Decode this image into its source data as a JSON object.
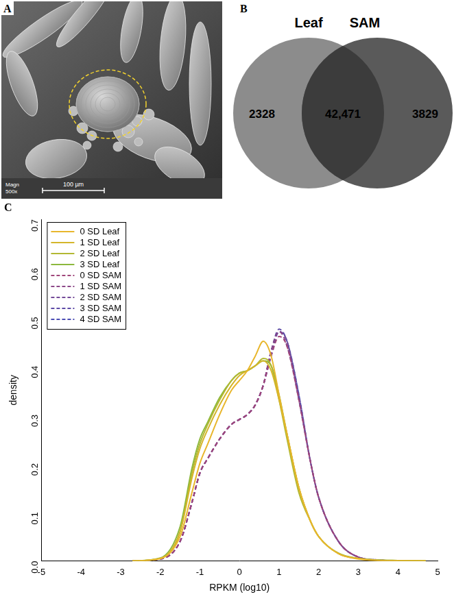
{
  "panels": {
    "A": {
      "label": "A",
      "scale_bar": "100 µm",
      "magnification": [
        "Magn",
        "500x"
      ]
    },
    "B": {
      "label": "B",
      "sets": [
        "Leaf",
        "SAM"
      ],
      "counts": {
        "Leaf only": "2328",
        "both": "42,471",
        "SAM only": "3829"
      }
    }
  },
  "chart_data": {
    "type": "line",
    "title": "C",
    "x_label": "RPKM (log10)",
    "y_label": "density",
    "x": [
      -2.7,
      -2,
      -1.5,
      -1.2,
      -1,
      -0.8,
      -0.5,
      -0.2,
      0,
      0.2,
      0.4,
      0.6,
      0.8,
      1,
      1.2,
      1.5,
      1.8,
      2,
      2.5,
      3,
      3.5,
      4,
      4.7
    ],
    "series": [
      {
        "name": "0 SD Leaf",
        "color": "#e8b62c",
        "line_style": "solid",
        "values": [
          0,
          0.005,
          0.05,
          0.14,
          0.2,
          0.24,
          0.3,
          0.35,
          0.37,
          0.39,
          0.42,
          0.45,
          0.42,
          0.34,
          0.26,
          0.15,
          0.08,
          0.05,
          0.015,
          0.004,
          0.001,
          0,
          0
        ]
      },
      {
        "name": "1 SD Leaf",
        "color": "#d4b52a",
        "line_style": "solid",
        "values": [
          0,
          0.005,
          0.06,
          0.17,
          0.23,
          0.27,
          0.32,
          0.36,
          0.38,
          0.39,
          0.4,
          0.41,
          0.39,
          0.33,
          0.26,
          0.15,
          0.08,
          0.05,
          0.015,
          0.005,
          0.001,
          0.001,
          0
        ]
      },
      {
        "name": "2 SD Leaf",
        "color": "#b2b832",
        "line_style": "solid",
        "values": [
          0,
          0.005,
          0.06,
          0.18,
          0.24,
          0.28,
          0.33,
          0.37,
          0.385,
          0.39,
          0.4,
          0.415,
          0.4,
          0.33,
          0.25,
          0.14,
          0.08,
          0.05,
          0.015,
          0.005,
          0.002,
          0.001,
          0
        ]
      },
      {
        "name": "3 SD Leaf",
        "color": "#8cb83c",
        "line_style": "solid",
        "values": [
          0,
          0.006,
          0.07,
          0.19,
          0.25,
          0.285,
          0.335,
          0.37,
          0.385,
          0.39,
          0.4,
          0.41,
          0.4,
          0.34,
          0.26,
          0.15,
          0.08,
          0.05,
          0.016,
          0.005,
          0.002,
          0.001,
          0
        ]
      },
      {
        "name": "0 SD SAM",
        "color": "#a0467a",
        "line_style": "dashed",
        "values": [
          0,
          0.004,
          0.04,
          0.12,
          0.18,
          0.21,
          0.25,
          0.28,
          0.29,
          0.3,
          0.32,
          0.36,
          0.42,
          0.46,
          0.44,
          0.33,
          0.2,
          0.13,
          0.04,
          0.008,
          0.002,
          0,
          null
        ]
      },
      {
        "name": "1 SD SAM",
        "color": "#8c4888",
        "line_style": "dashed",
        "values": [
          0,
          0.004,
          0.04,
          0.12,
          0.18,
          0.21,
          0.25,
          0.28,
          0.29,
          0.3,
          0.32,
          0.36,
          0.43,
          0.47,
          0.44,
          0.33,
          0.2,
          0.13,
          0.04,
          0.008,
          0.002,
          0,
          null
        ]
      },
      {
        "name": "2 SD SAM",
        "color": "#744a98",
        "line_style": "dashed",
        "values": [
          0,
          0.004,
          0.04,
          0.12,
          0.18,
          0.21,
          0.25,
          0.28,
          0.29,
          0.3,
          0.32,
          0.36,
          0.43,
          0.47,
          0.45,
          0.33,
          0.2,
          0.13,
          0.04,
          0.008,
          0.002,
          0,
          null
        ]
      },
      {
        "name": "3 SD SAM",
        "color": "#5c4aa6",
        "line_style": "dashed",
        "values": [
          0,
          0.004,
          0.04,
          0.12,
          0.18,
          0.21,
          0.25,
          0.28,
          0.29,
          0.3,
          0.32,
          0.36,
          0.43,
          0.475,
          0.45,
          0.34,
          0.2,
          0.13,
          0.04,
          0.008,
          0.002,
          0,
          null
        ]
      },
      {
        "name": "4 SD SAM",
        "color": "#4a4cb4",
        "line_style": "dashed",
        "values": [
          0,
          0.004,
          0.04,
          0.12,
          0.18,
          0.21,
          0.25,
          0.28,
          0.29,
          0.3,
          0.32,
          0.36,
          0.42,
          0.47,
          0.45,
          0.34,
          0.2,
          0.13,
          0.04,
          0.008,
          0.002,
          0,
          null
        ]
      }
    ],
    "xlim": [
      -5,
      5
    ],
    "xticks": [
      -5,
      -4,
      -3,
      -2,
      -1,
      0,
      1,
      2,
      3,
      4,
      5
    ],
    "ylim": [
      0,
      0.7
    ],
    "yticks": [
      {
        "value": 0,
        "label": "0.0"
      },
      0.1,
      0.2,
      0.3,
      0.4,
      0.5,
      0.6,
      0.7
    ],
    "grid": false,
    "legend": "upper left"
  }
}
